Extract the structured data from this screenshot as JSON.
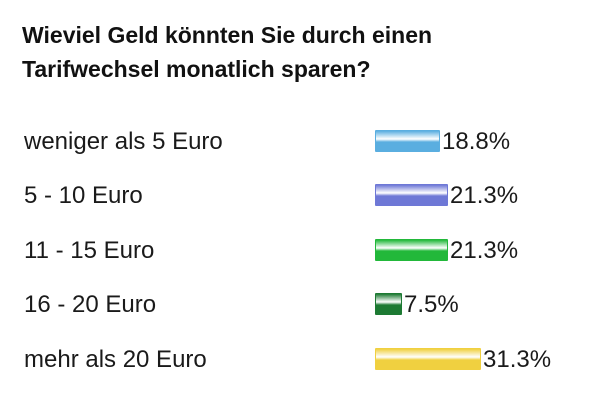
{
  "poll": {
    "question": "Wieviel Geld könnten Sie durch einen Tarifwechsel monatlich sparen?"
  },
  "chart_data": {
    "type": "bar",
    "orientation": "horizontal",
    "title": "Wieviel Geld könnten Sie durch einen Tarifwechsel monatlich sparen?",
    "categories": [
      "weniger als 5 Euro",
      "5 - 10 Euro",
      "11 - 15 Euro",
      "16 - 20 Euro",
      "mehr als 20 Euro"
    ],
    "values": [
      18.8,
      21.3,
      21.3,
      7.5,
      31.3
    ],
    "value_labels": [
      "18.8%",
      "21.3%",
      "21.3%",
      "7.5%",
      "31.3%"
    ],
    "unit": "%",
    "colors": [
      "#5aaee0",
      "#6e78d6",
      "#22b83a",
      "#1d7a33",
      "#f0d040"
    ],
    "grid": false,
    "legend": "none"
  }
}
